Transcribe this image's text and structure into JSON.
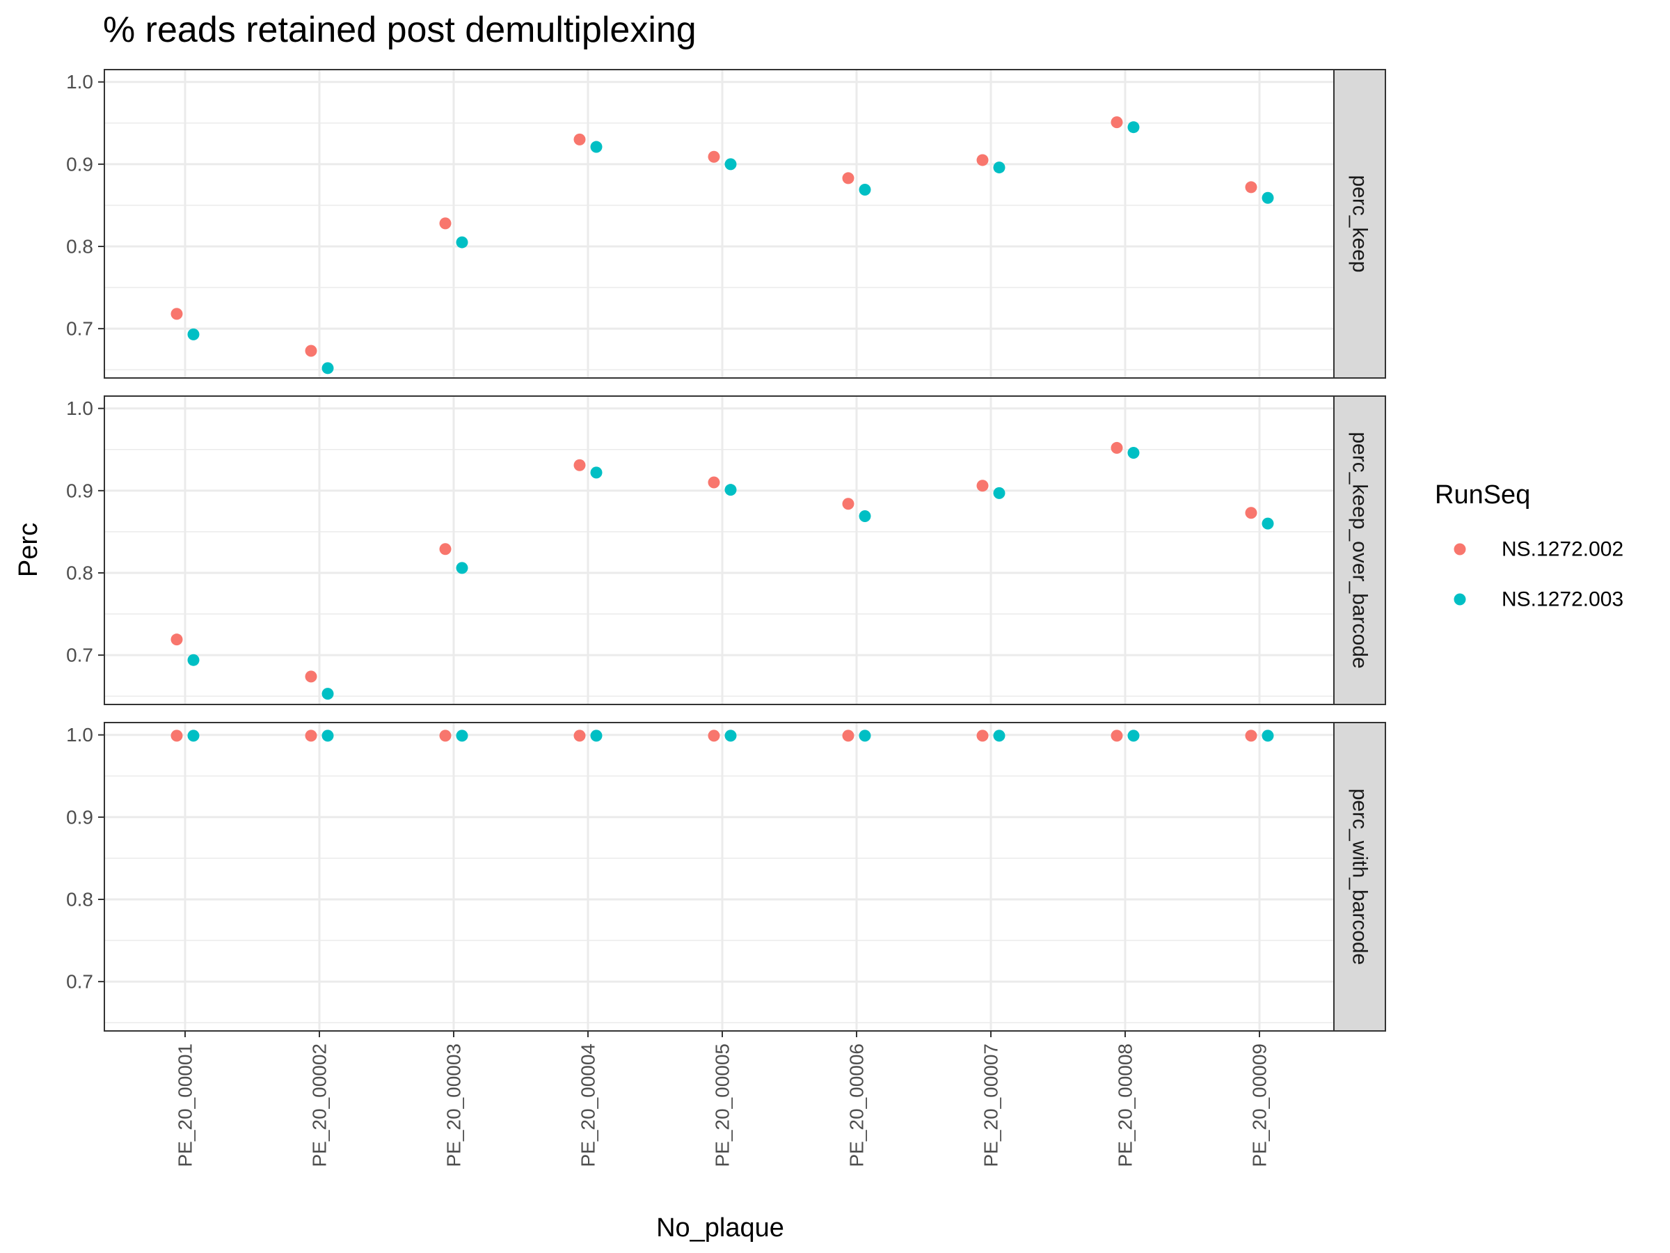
{
  "chart_data": {
    "type": "scatter",
    "title": "% reads retained post demultiplexing",
    "xlabel": "No_plaque",
    "ylabel": "Perc",
    "ylim": [
      0.64,
      1.015
    ],
    "yticks": [
      0.7,
      0.8,
      0.9,
      1.0
    ],
    "ytick_labels": [
      "0.7",
      "0.8",
      "0.9",
      "1.0"
    ],
    "grid": true,
    "legend_position": "right",
    "legend_title": "RunSeq",
    "categories": [
      "PE_20_00001",
      "PE_20_00002",
      "PE_20_00003",
      "PE_20_00004",
      "PE_20_00005",
      "PE_20_00006",
      "PE_20_00007",
      "PE_20_00008",
      "PE_20_00009"
    ],
    "series": [
      {
        "name": "NS.1272.002",
        "color": "#F8766D"
      },
      {
        "name": "NS.1272.003",
        "color": "#00BFC4"
      }
    ],
    "facets": [
      {
        "label": "perc_keep",
        "values": [
          [
            0.718,
            0.673,
            0.828,
            0.93,
            0.909,
            0.883,
            0.905,
            0.951,
            0.872
          ],
          [
            0.693,
            0.652,
            0.805,
            0.921,
            0.9,
            0.869,
            0.896,
            0.945,
            0.859
          ]
        ]
      },
      {
        "label": "perc_keep_over_barcode",
        "values": [
          [
            0.719,
            0.674,
            0.829,
            0.931,
            0.91,
            0.884,
            0.906,
            0.952,
            0.873
          ],
          [
            0.694,
            0.653,
            0.806,
            0.922,
            0.901,
            0.869,
            0.897,
            0.946,
            0.86
          ]
        ]
      },
      {
        "label": "perc_with_barcode",
        "values": [
          [
            0.999,
            0.999,
            0.999,
            0.999,
            0.999,
            0.999,
            0.999,
            0.999,
            0.999
          ],
          [
            0.999,
            0.999,
            0.999,
            0.999,
            0.999,
            0.999,
            0.999,
            0.999,
            0.999
          ]
        ]
      }
    ]
  }
}
